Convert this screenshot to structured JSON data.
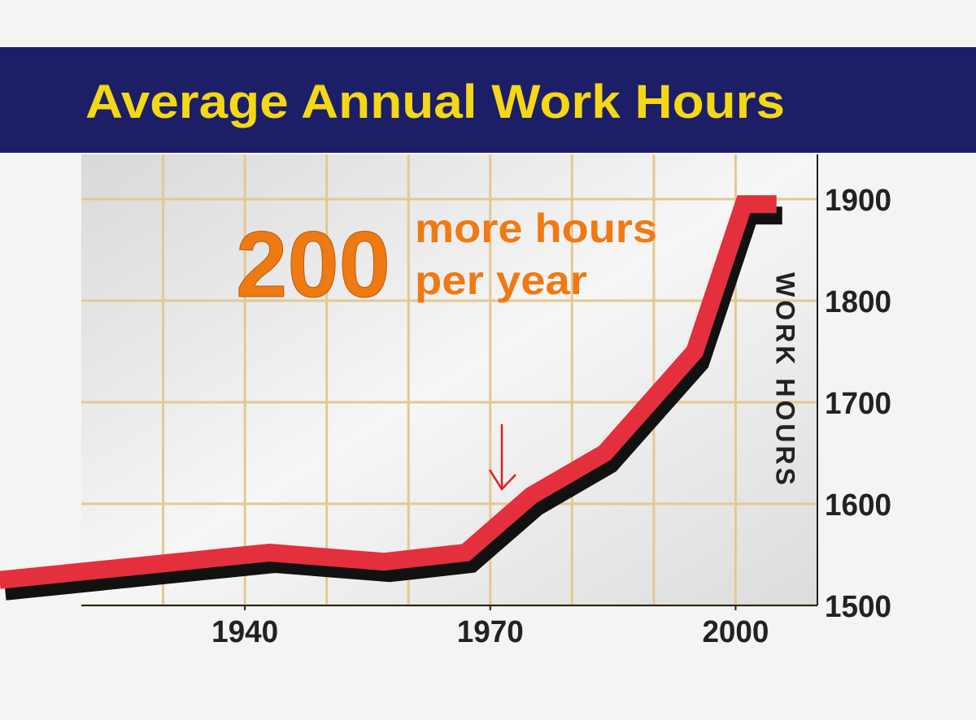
{
  "chart_data": {
    "type": "line",
    "title": "Average Annual Work Hours",
    "y_label": "WORK HOURS",
    "annotations": [
      "200",
      "more hours",
      "per year"
    ],
    "x": [
      1910,
      1943,
      1957,
      1967,
      1975,
      1984,
      1995,
      2001,
      2005
    ],
    "series": [
      {
        "color": "#e3303c",
        "values": [
          1525,
          1552,
          1543,
          1552,
          1608,
          1650,
          1750,
          1895,
          1895
        ]
      }
    ],
    "xlim": [
      1920,
      2010
    ],
    "ylim": [
      1500,
      1944
    ],
    "xticks": [
      1940,
      1970,
      2000
    ],
    "xgrid": [
      1930,
      1940,
      1950,
      1960,
      1970,
      1980,
      1990,
      2000
    ],
    "yticks": [
      1500,
      1600,
      1700,
      1800,
      1900
    ],
    "grid": true
  }
}
